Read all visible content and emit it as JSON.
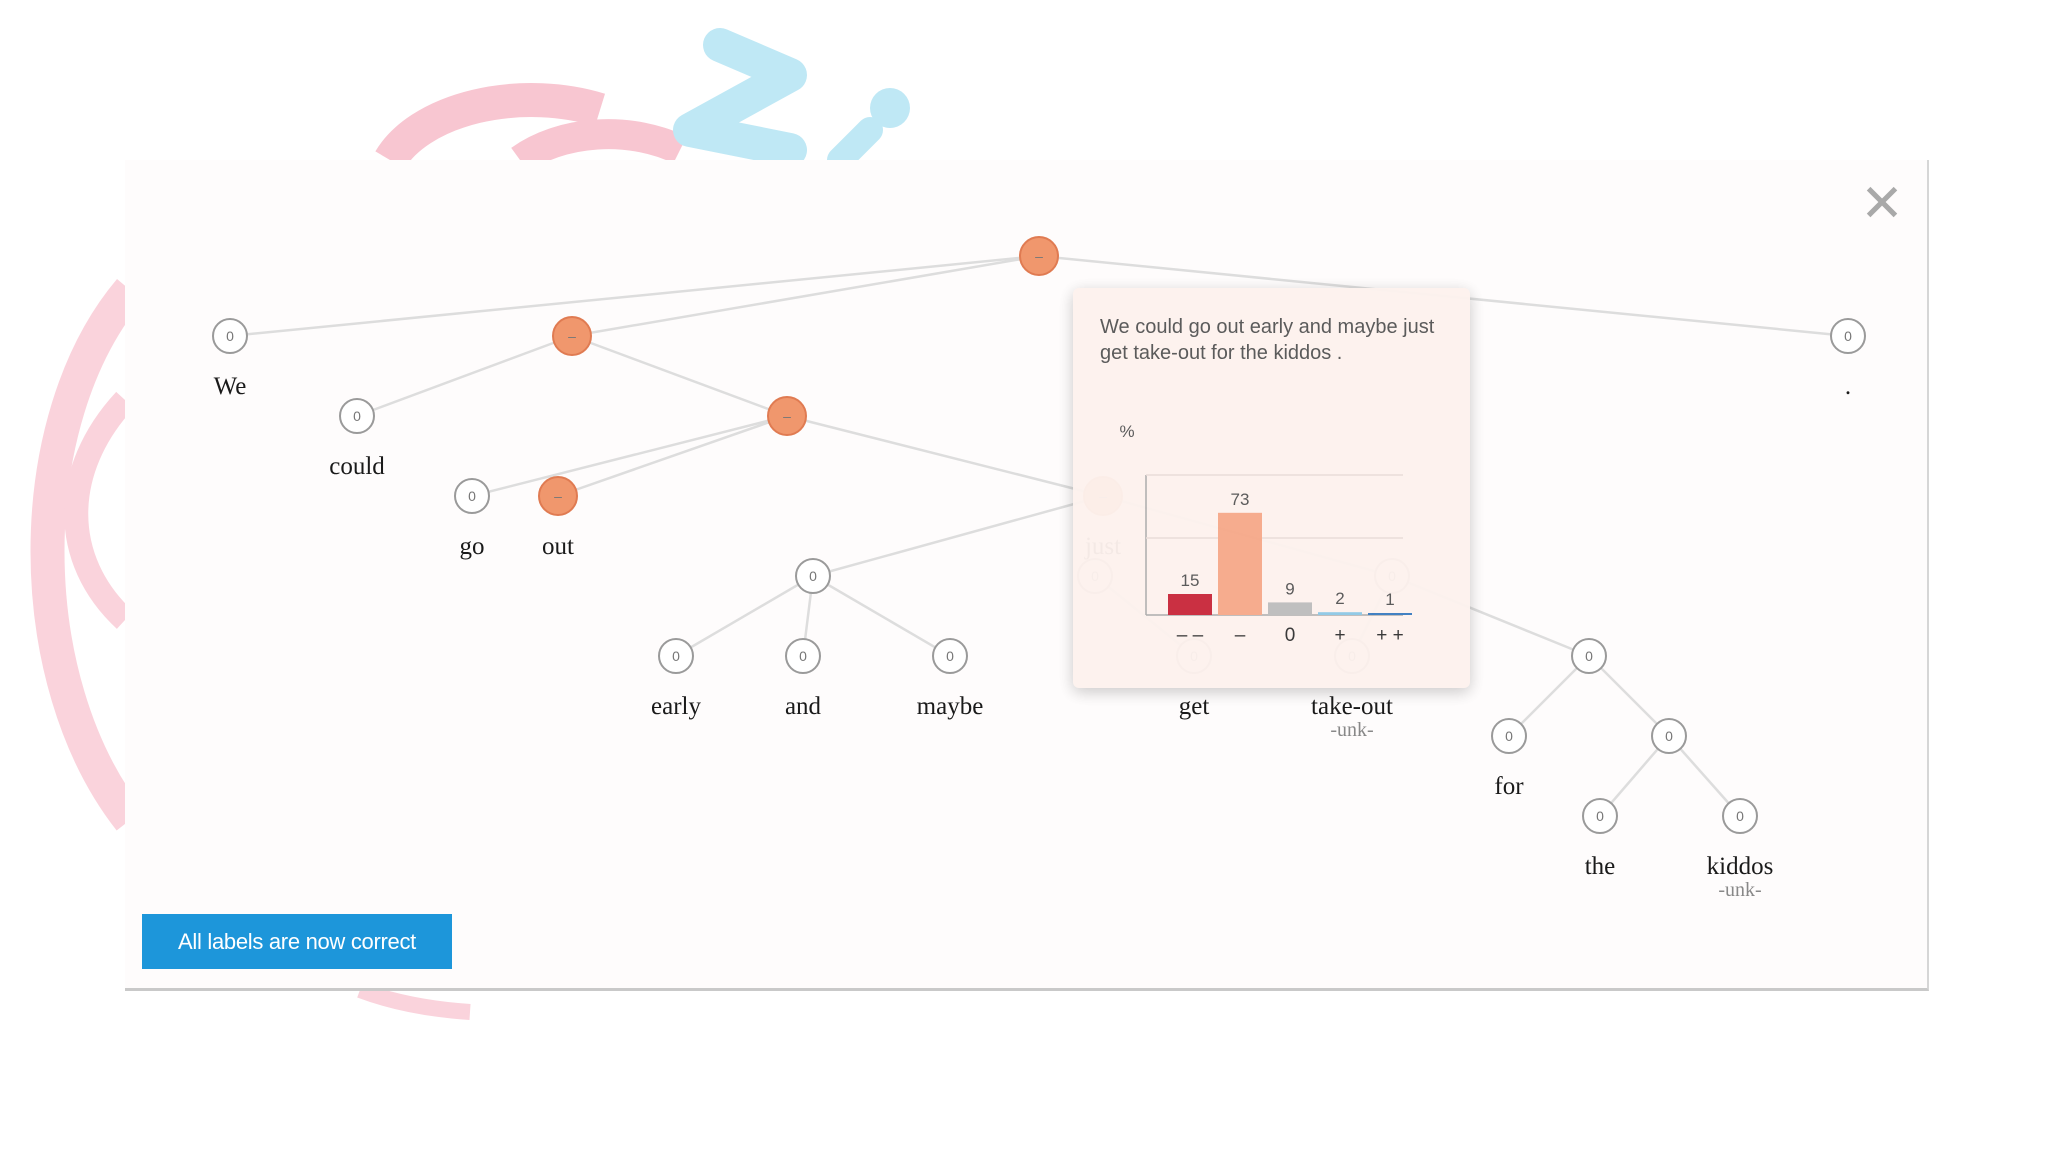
{
  "app": {
    "close_glyph": "✕",
    "correct_button_label": "All labels are now correct"
  },
  "colors": {
    "negative_node": "#f0976d",
    "neutral_node": "#ffffff",
    "button": "#1d96da",
    "very_negative": "#c8283b",
    "negative": "#f6a98a",
    "neutral": "#bdbdbd",
    "positive": "#8ec8e6",
    "very_positive": "#3b7cc0"
  },
  "tree": {
    "nodes": [
      {
        "id": "n0",
        "label": "–",
        "sentiment": "negative"
      },
      {
        "id": "n1",
        "label": "0",
        "sentiment": "neutral",
        "word": "We"
      },
      {
        "id": "n2",
        "label": "–",
        "sentiment": "negative"
      },
      {
        "id": "n3",
        "label": "0",
        "sentiment": "neutral",
        "word": "."
      },
      {
        "id": "n4",
        "label": "0",
        "sentiment": "neutral",
        "word": "could"
      },
      {
        "id": "n5",
        "label": "–",
        "sentiment": "negative"
      },
      {
        "id": "n6",
        "label": "0",
        "sentiment": "neutral",
        "word": "go"
      },
      {
        "id": "n7",
        "label": "–",
        "sentiment": "negative",
        "word": "out"
      },
      {
        "id": "n8",
        "label": "0",
        "sentiment": "neutral"
      },
      {
        "id": "n9",
        "label": "0",
        "sentiment": "neutral",
        "word": "early"
      },
      {
        "id": "n10",
        "label": "0",
        "sentiment": "neutral",
        "word": "and"
      },
      {
        "id": "n11",
        "label": "0",
        "sentiment": "neutral",
        "word": "maybe"
      },
      {
        "id": "n12",
        "label": "0",
        "sentiment": "neutral",
        "word": "get"
      },
      {
        "id": "n13",
        "label": "0",
        "sentiment": "neutral",
        "word": "take-out",
        "unk": "-unk-"
      },
      {
        "id": "n14",
        "label": "0",
        "sentiment": "neutral"
      },
      {
        "id": "n15",
        "label": "0",
        "sentiment": "neutral",
        "word": "for"
      },
      {
        "id": "n16",
        "label": "0",
        "sentiment": "neutral"
      },
      {
        "id": "n17",
        "label": "0",
        "sentiment": "neutral",
        "word": "the"
      },
      {
        "id": "n18",
        "label": "0",
        "sentiment": "neutral",
        "word": "kiddos",
        "unk": "-unk-"
      },
      {
        "id": "n19",
        "label": "–",
        "sentiment": "negative",
        "word": "just"
      },
      {
        "id": "n20",
        "label": "0",
        "sentiment": "neutral"
      },
      {
        "id": "n21",
        "label": "0",
        "sentiment": "neutral"
      }
    ]
  },
  "tooltip": {
    "sentence": "We could go out early and maybe just get take-out for the kiddos .",
    "y_unit": "%"
  },
  "chart_data": {
    "type": "bar",
    "title": "",
    "xlabel": "",
    "ylabel": "%",
    "categories": [
      "– –",
      "–",
      "0",
      "+",
      "+ +"
    ],
    "values": [
      15,
      73,
      9,
      2,
      1
    ],
    "ylim": [
      0,
      100
    ],
    "grid": true
  }
}
